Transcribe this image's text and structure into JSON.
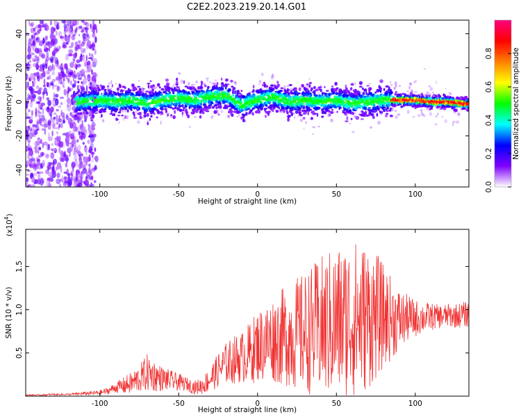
{
  "figure": {
    "title": "C2E2.2023.219.20.14.G01"
  },
  "chart_data": [
    {
      "type": "heatmap",
      "title": "C2E2.2023.219.20.14.G01",
      "xlabel": "Height of straight line (km)",
      "ylabel": "Frequency (Hz)",
      "xlim": [
        -147,
        134
      ],
      "ylim": [
        -50,
        48
      ],
      "x_ticks": [
        -100,
        -50,
        0,
        50,
        100
      ],
      "y_ticks": [
        -40,
        -20,
        0,
        20,
        40
      ],
      "grid": false,
      "colorbar": {
        "label": "Normalized spectral amplitude",
        "range": [
          0,
          1
        ],
        "ticks": [
          "0.0",
          "0.2",
          "0.4",
          "0.6",
          "0.8"
        ],
        "colors": [
          "#ffffff",
          "#8000ff",
          "#0000ff",
          "#00ffff",
          "#00ff00",
          "#ffff00",
          "#ff8000",
          "#ff0000",
          "#ff0080"
        ]
      },
      "ridge_center": [
        {
          "x": -110,
          "y": 0
        },
        {
          "x": -100,
          "y": 1
        },
        {
          "x": -90,
          "y": 0
        },
        {
          "x": -80,
          "y": 1
        },
        {
          "x": -70,
          "y": -1
        },
        {
          "x": -60,
          "y": 1
        },
        {
          "x": -50,
          "y": 2
        },
        {
          "x": -40,
          "y": 1
        },
        {
          "x": -30,
          "y": 3
        },
        {
          "x": -20,
          "y": 4
        },
        {
          "x": -10,
          "y": -2
        },
        {
          "x": 0,
          "y": 1
        },
        {
          "x": 10,
          "y": 3
        },
        {
          "x": 20,
          "y": 0
        },
        {
          "x": 30,
          "y": 1
        },
        {
          "x": 40,
          "y": 0
        },
        {
          "x": 50,
          "y": 1
        },
        {
          "x": 60,
          "y": -1
        },
        {
          "x": 70,
          "y": 0
        },
        {
          "x": 80,
          "y": 1
        },
        {
          "x": 90,
          "y": 1
        },
        {
          "x": 100,
          "y": 1
        },
        {
          "x": 110,
          "y": 0
        },
        {
          "x": 120,
          "y": 0
        },
        {
          "x": 130,
          "y": -1
        }
      ]
    },
    {
      "type": "line",
      "xlabel": "Height of straight line (km)",
      "ylabel": "SNR (10 * v/v)",
      "y_multiplier": "(x10",
      "y_multiplier_exp": "4",
      "y_multiplier_close": ")",
      "xlim": [
        -147,
        134
      ],
      "ylim": [
        0,
        1.93
      ],
      "x_ticks": [
        -100,
        -50,
        0,
        50,
        100
      ],
      "y_ticks": [
        0.5,
        1.0,
        1.5
      ],
      "y_tick_labels": [
        "0.5",
        "1.0",
        "1.5"
      ],
      "grid": false,
      "series": [
        {
          "color": "#f03030",
          "x": [
            -147,
            -140,
            -130,
            -120,
            -110,
            -100,
            -95,
            -90,
            -85,
            -80,
            -75,
            -70,
            -65,
            -60,
            -55,
            -50,
            -45,
            -40,
            -35,
            -30,
            -25,
            -20,
            -15,
            -10,
            -5,
            0,
            5,
            10,
            15,
            20,
            25,
            30,
            35,
            40,
            45,
            50,
            55,
            60,
            65,
            70,
            75,
            80,
            85,
            90,
            95,
            100,
            105,
            110,
            115,
            120,
            125,
            130,
            134
          ],
          "mean": [
            0.01,
            0.01,
            0.02,
            0.02,
            0.03,
            0.04,
            0.06,
            0.1,
            0.12,
            0.15,
            0.2,
            0.27,
            0.23,
            0.2,
            0.18,
            0.16,
            0.14,
            0.1,
            0.12,
            0.2,
            0.3,
            0.38,
            0.42,
            0.45,
            0.5,
            0.58,
            0.62,
            0.66,
            0.68,
            0.7,
            0.72,
            0.74,
            0.76,
            0.8,
            0.82,
            0.85,
            0.88,
            0.9,
            0.9,
            0.92,
            0.93,
            0.92,
            0.9,
            0.88,
            0.9,
            0.9,
            0.91,
            0.92,
            0.92,
            0.93,
            0.93,
            0.94,
            0.95
          ],
          "spread": [
            0.01,
            0.01,
            0.01,
            0.01,
            0.02,
            0.03,
            0.04,
            0.06,
            0.1,
            0.13,
            0.16,
            0.22,
            0.18,
            0.14,
            0.12,
            0.1,
            0.08,
            0.08,
            0.1,
            0.15,
            0.2,
            0.24,
            0.28,
            0.3,
            0.36,
            0.42,
            0.46,
            0.5,
            0.56,
            0.6,
            0.66,
            0.7,
            0.76,
            0.82,
            0.86,
            0.9,
            0.9,
            0.92,
            0.9,
            0.85,
            0.75,
            0.6,
            0.48,
            0.36,
            0.28,
            0.22,
            0.18,
            0.16,
            0.14,
            0.14,
            0.14,
            0.15,
            0.15
          ]
        }
      ]
    }
  ]
}
